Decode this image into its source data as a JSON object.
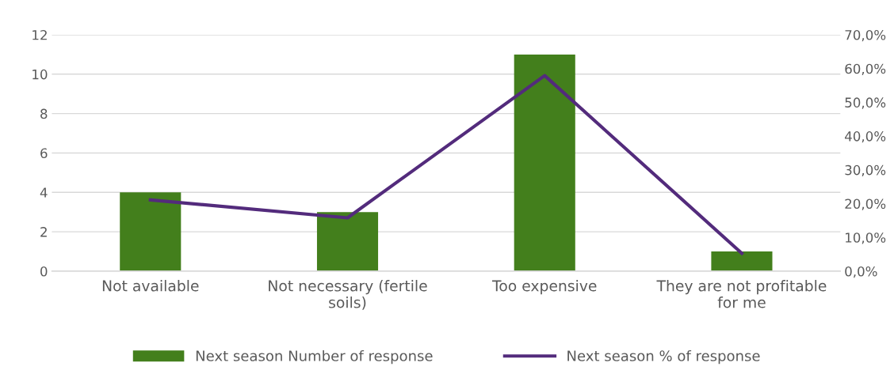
{
  "chart_data": {
    "type": "bar",
    "categories": [
      "Not available",
      "Not necessary (fertile soils)",
      "Too expensive",
      "They are not profitable for me"
    ],
    "series": [
      {
        "name": "Next season Number of response",
        "color": "#437f1c",
        "values": [
          4,
          3,
          11,
          1
        ]
      },
      {
        "name": "Next season % of response",
        "type": "line",
        "axis": "y2",
        "color": "#532b7c",
        "values": [
          21.1,
          15.8,
          57.9,
          5.3
        ]
      }
    ],
    "ylim": [
      0,
      12
    ],
    "yticks": [
      0,
      2,
      4,
      6,
      8,
      10,
      12
    ],
    "y2lim": [
      0,
      70
    ],
    "y2ticks": [
      {
        "value": 0,
        "label": "0,0%"
      },
      {
        "value": 10,
        "label": "10,0%"
      },
      {
        "value": 20,
        "label": "20,0%"
      },
      {
        "value": 30,
        "label": "30,0%"
      },
      {
        "value": 40,
        "label": "40,0%"
      },
      {
        "value": 50,
        "label": "50,0%"
      },
      {
        "value": 60,
        "label": "60,0%"
      },
      {
        "value": 70,
        "label": "70,0%"
      }
    ],
    "grid": "y",
    "legend": "bottom",
    "marker": "none",
    "line_style": "solid"
  }
}
